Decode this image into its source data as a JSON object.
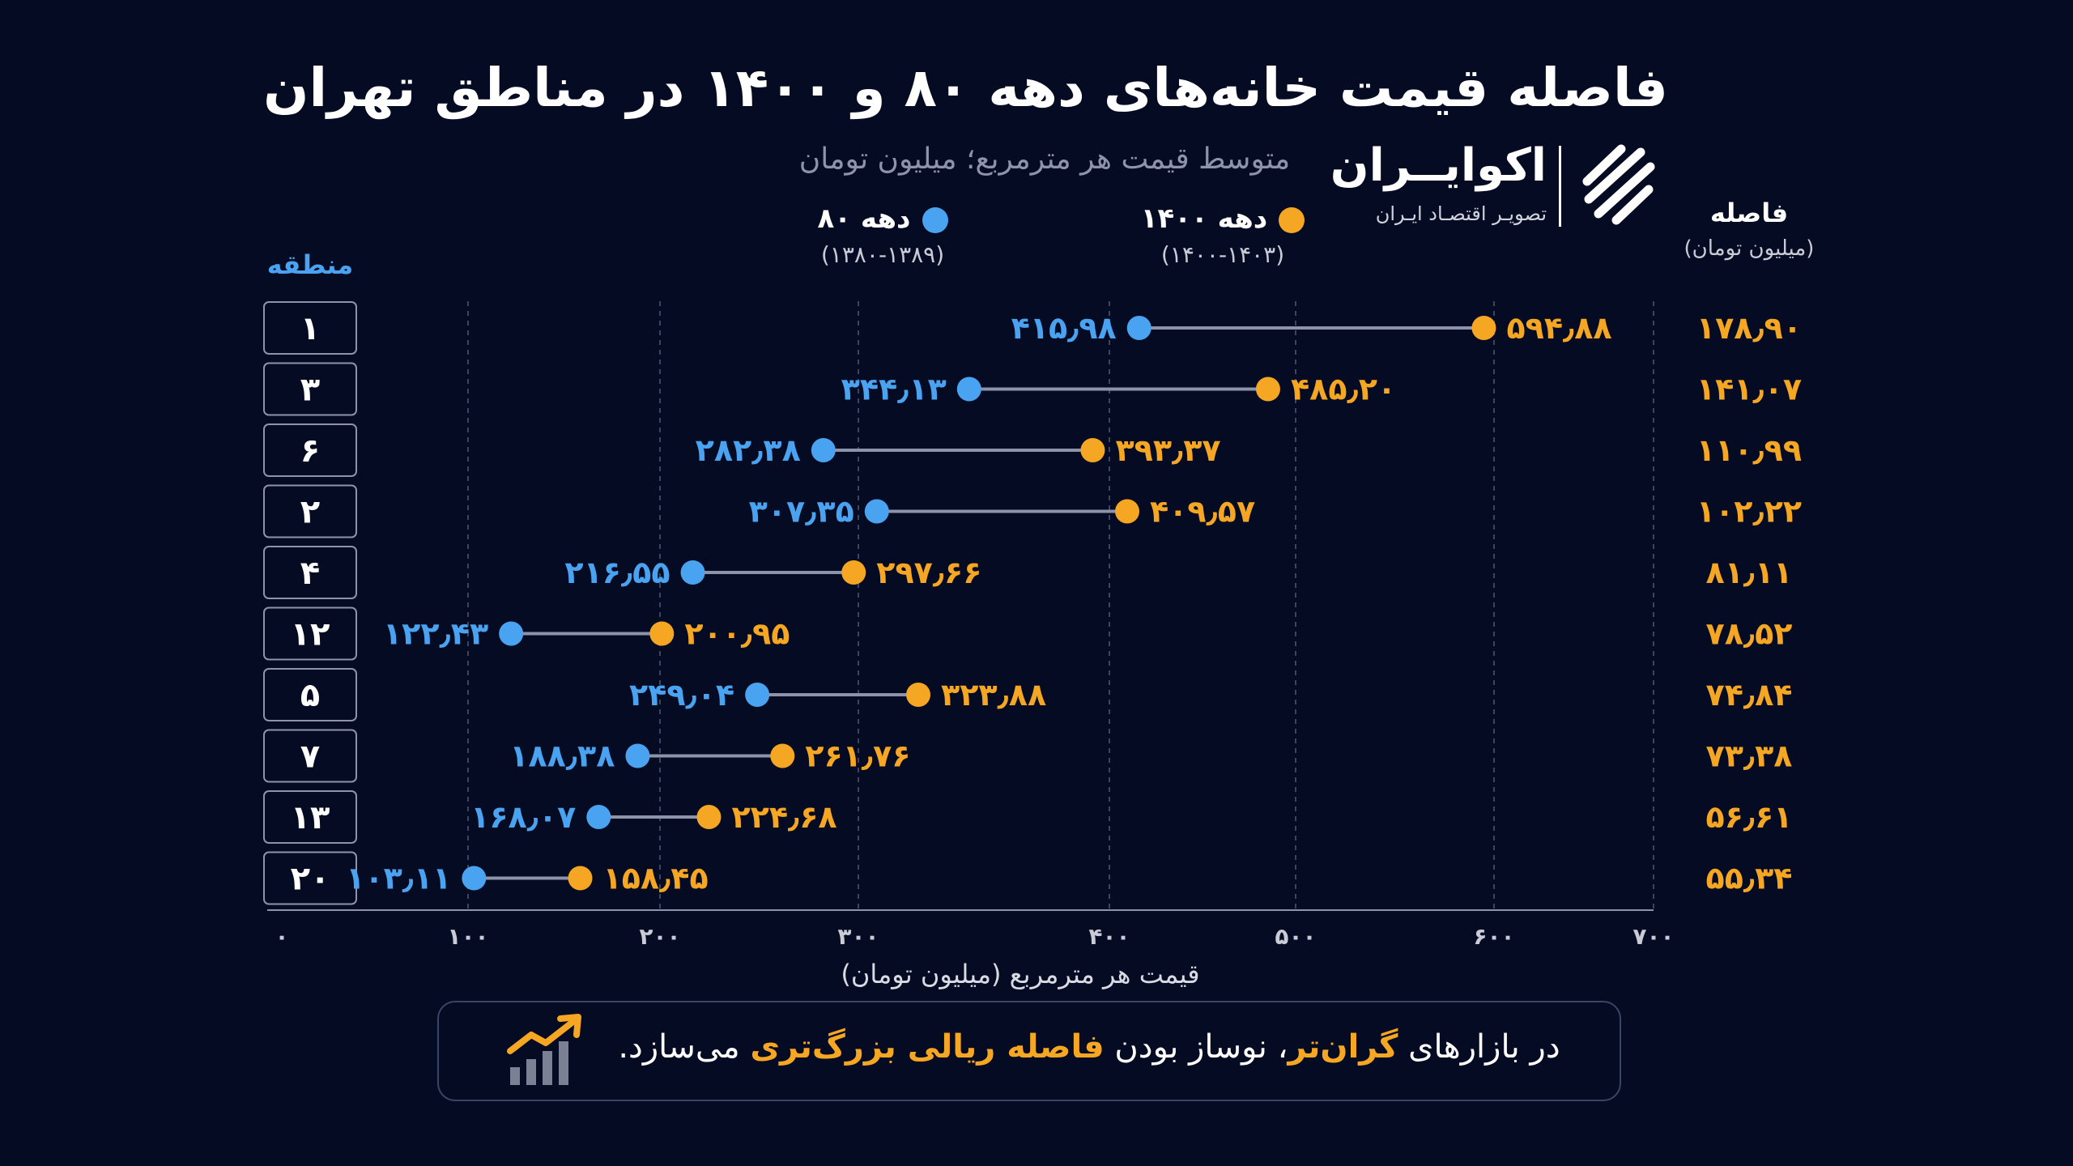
{
  "title": "فاصله قیمت خانه‌های دهه ۸۰ و ۱۴۰۰ در مناطق تهران",
  "subtitle": "متوسط قیمت هر مترمربع؛ میلیون تومان",
  "brand": {
    "name": "اکوایــران",
    "tagline": "تصویـر اقتصـاد ایـران"
  },
  "legend": [
    {
      "label": "دهه ۱۴۰۰",
      "range": "(۱۴۰۰-۱۴۰۳)",
      "color": "#f5a623"
    },
    {
      "label": "دهه ۸۰",
      "range": "(۱۳۸۰-۱۳۸۹)",
      "color": "#4aa3f0"
    }
  ],
  "gap_header": {
    "title": "فاصله",
    "unit": "(میلیون تومان)"
  },
  "region_header": "منطقه",
  "footer": {
    "part1": "در بازارهای ",
    "highlight1": "گران‌تر",
    "part2": "، نوساز بودن ",
    "highlight2": "فاصله ریالی بزرگ‌تری",
    "part3": " می‌سازد."
  },
  "chart_data": {
    "type": "dumbbell",
    "xlabel": "قیمت هر مترمربع (میلیون تومان)",
    "x_tick_values": [
      0,
      100,
      200,
      300,
      400,
      500,
      600,
      700
    ],
    "x_tick_labels": [
      "۰",
      "۱۰۰",
      "۲۰۰",
      "۳۰۰",
      "۴۰۰",
      "۵۰۰",
      "۶۰۰",
      "۷۰۰"
    ],
    "xlim": [
      0,
      700
    ],
    "grid": "vertical-dashed",
    "series": [
      {
        "name": "دهه ۸۰",
        "color": "#4aa3f0"
      },
      {
        "name": "دهه ۱۴۰۰",
        "color": "#f5a623"
      }
    ],
    "rows": [
      {
        "region": "۱",
        "v80": 415.98,
        "v1400": 594.88,
        "label80": "۴۱۵٫۹۸",
        "label1400": "۵۹۴٫۸۸",
        "gap": "۱۷۸٫۹۰"
      },
      {
        "region": "۳",
        "v80": 344.13,
        "v1400": 485.2,
        "label80": "۳۴۴٫۱۳",
        "label1400": "۴۸۵٫۲۰",
        "gap": "۱۴۱٫۰۷"
      },
      {
        "region": "۶",
        "v80": 282.38,
        "v1400": 393.37,
        "label80": "۲۸۲٫۳۸",
        "label1400": "۳۹۳٫۳۷",
        "gap": "۱۱۰٫۹۹"
      },
      {
        "region": "۲",
        "v80": 307.35,
        "v1400": 409.57,
        "label80": "۳۰۷٫۳۵",
        "label1400": "۴۰۹٫۵۷",
        "gap": "۱۰۲٫۲۲"
      },
      {
        "region": "۴",
        "v80": 216.55,
        "v1400": 297.66,
        "label80": "۲۱۶٫۵۵",
        "label1400": "۲۹۷٫۶۶",
        "gap": "۸۱٫۱۱"
      },
      {
        "region": "۱۲",
        "v80": 122.43,
        "v1400": 200.95,
        "label80": "۱۲۲٫۴۳",
        "label1400": "۲۰۰٫۹۵",
        "gap": "۷۸٫۵۲"
      },
      {
        "region": "۵",
        "v80": 249.04,
        "v1400": 323.88,
        "label80": "۲۴۹٫۰۴",
        "label1400": "۳۲۳٫۸۸",
        "gap": "۷۴٫۸۴"
      },
      {
        "region": "۷",
        "v80": 188.38,
        "v1400": 261.76,
        "label80": "۱۸۸٫۳۸",
        "label1400": "۲۶۱٫۷۶",
        "gap": "۷۳٫۳۸"
      },
      {
        "region": "۱۳",
        "v80": 168.07,
        "v1400": 224.68,
        "label80": "۱۶۸٫۰۷",
        "label1400": "۲۲۴٫۶۸",
        "gap": "۵۶٫۶۱"
      },
      {
        "region": "۲۰",
        "v80": 103.11,
        "v1400": 158.45,
        "label80": "۱۰۳٫۱۱",
        "label1400": "۱۵۸٫۴۵",
        "gap": "۵۵٫۳۴"
      }
    ]
  }
}
